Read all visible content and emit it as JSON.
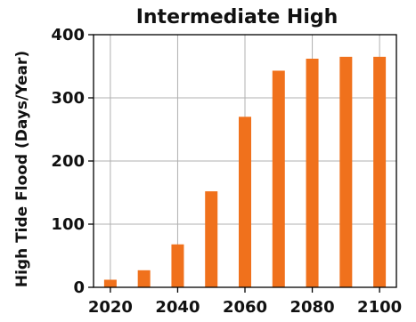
{
  "chart_data": {
    "type": "bar",
    "title": "Intermediate High",
    "xlabel": "",
    "ylabel": "High Tide Flood (Days/Year)",
    "x": [
      2020,
      2030,
      2040,
      2050,
      2060,
      2070,
      2080,
      2090,
      2100
    ],
    "values": [
      12,
      27,
      68,
      152,
      270,
      343,
      362,
      365,
      365
    ],
    "xlim": [
      2015,
      2105
    ],
    "ylim": [
      0,
      400
    ],
    "xticks": [
      2020,
      2040,
      2060,
      2080,
      2100
    ],
    "yticks": [
      0,
      100,
      200,
      300,
      400
    ],
    "grid": true,
    "bar_color": "#f0711c"
  }
}
